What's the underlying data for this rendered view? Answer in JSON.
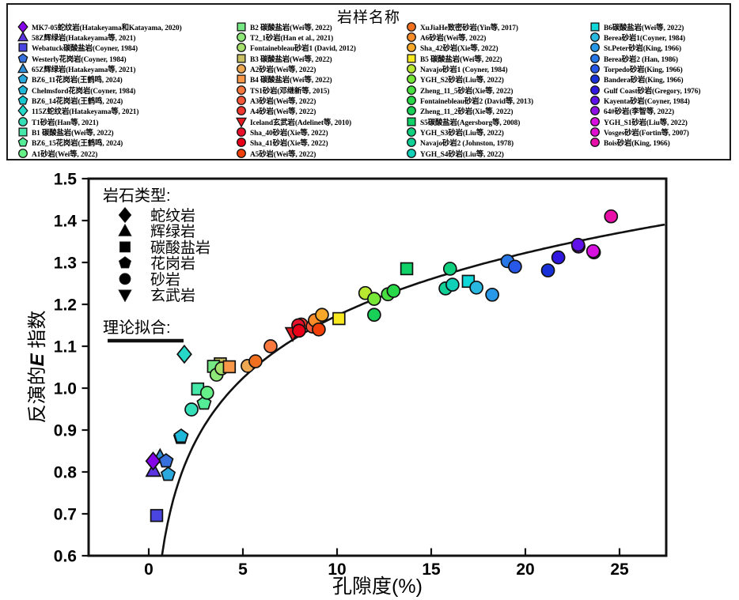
{
  "figure": {
    "legend_title": "岩样名称",
    "rock_type_legend": {
      "title": "岩石类型:",
      "items": [
        {
          "shape": "diamond",
          "label": "蛇纹岩"
        },
        {
          "shape": "triangle-up",
          "label": "辉绿岩"
        },
        {
          "shape": "square",
          "label": "碳酸盐岩"
        },
        {
          "shape": "pentagon",
          "label": "花岗岩"
        },
        {
          "shape": "circle",
          "label": "砂岩"
        },
        {
          "shape": "triangle-down",
          "label": "玄武岩"
        }
      ]
    },
    "fit_legend_label": "理论拟合:"
  },
  "legend_columns": [
    [
      {
        "label": "MK7-05蛇纹岩(Hatakeyama和Katayama, 2020)",
        "shape": "diamond",
        "color": "#8505E8"
      },
      {
        "label": "58Z辉绿岩(Hatakeyama等, 2021)",
        "shape": "triangle-up",
        "color": "#5A35E0"
      },
      {
        "label": "Webatuck碳酸盐岩(Coyner, 1984)",
        "shape": "square",
        "color": "#4A45E0"
      },
      {
        "label": "Westerly花岗岩(Coyner, 1984)",
        "shape": "pentagon",
        "color": "#3570DD"
      },
      {
        "label": "65Z辉绿岩(Hatakeyama等, 2021)",
        "shape": "triangle-up",
        "color": "#2E8FD8"
      },
      {
        "label": "BZ6_11花岗岩(王鹤鸣, 2024)",
        "shape": "pentagon",
        "color": "#2BA8DC"
      },
      {
        "label": "Chelmsford花岗岩(Coyner, 1984)",
        "shape": "pentagon",
        "color": "#1FB8D8"
      },
      {
        "label": "BZ6_14花岗岩(王鹤鸣, 2024)",
        "shape": "pentagon",
        "color": "#17C8D0"
      },
      {
        "label": "115Z蛇纹岩(Hatakeyama等, 2021)",
        "shape": "diamond",
        "color": "#25D8C8"
      },
      {
        "label": "T1砂岩(Han等, 2021)",
        "shape": "circle",
        "color": "#35E0B8"
      },
      {
        "label": "B1 碳酸盐岩(Wei等, 2022)",
        "shape": "square",
        "color": "#45E8A8"
      },
      {
        "label": "BZ6_15花岗岩(王鹤鸣, 2024)",
        "shape": "pentagon",
        "color": "#55EC98"
      },
      {
        "label": "A1砂岩(Wei等, 2022)",
        "shape": "circle",
        "color": "#65F088"
      }
    ],
    [
      {
        "label": "B2 碳酸盐岩(Wei等, 2022)",
        "shape": "square",
        "color": "#75E883"
      },
      {
        "label": "T2_1砂岩(Han et al., 2021)",
        "shape": "circle",
        "color": "#8DE878"
      },
      {
        "label": "Fontainebleau砂岩1 (David, 2012)",
        "shape": "circle",
        "color": "#A5E06D"
      },
      {
        "label": "B3 碳酸盐岩(Wei等, 2022)",
        "shape": "square",
        "color": "#C8C060"
      },
      {
        "label": "A2砂岩(Wei等, 2022)",
        "shape": "circle",
        "color": "#EFA852"
      },
      {
        "label": "B4 碳酸盐岩(Wei等, 2022)",
        "shape": "square",
        "color": "#F89848"
      },
      {
        "label": "TS1砂岩(邓继新等, 2015)",
        "shape": "circle",
        "color": "#F87840"
      },
      {
        "label": "A3砂岩(Wei等, 2022)",
        "shape": "circle",
        "color": "#F8583A"
      },
      {
        "label": "A4砂岩(Wei等, 2022)",
        "shape": "circle",
        "color": "#F03830"
      },
      {
        "label": "Iceland玄武岩(Adelinet等, 2010)",
        "shape": "triangle-down",
        "color": "#E81820"
      },
      {
        "label": "Sha_40砂岩(Xie等, 2022)",
        "shape": "circle",
        "color": "#E8102A"
      },
      {
        "label": "Sha_41砂岩(Xie等, 2022)",
        "shape": "circle",
        "color": "#E80018"
      },
      {
        "label": "A5砂岩(Wei等, 2022)",
        "shape": "circle",
        "color": "#F04008"
      }
    ],
    [
      {
        "label": "XuJiaHe致密砂岩(Yin等, 2017)",
        "shape": "circle",
        "color": "#F07020"
      },
      {
        "label": "A6砂岩(Wei等, 2022)",
        "shape": "circle",
        "color": "#F88C28"
      },
      {
        "label": "Sha_42砂岩(Xie等, 2022)",
        "shape": "circle",
        "color": "#F8A828"
      },
      {
        "label": "B5 碳酸盐岩(Wei等, 2022)",
        "shape": "square",
        "color": "#F8E820"
      },
      {
        "label": "Navajo砂岩1 (Coyner, 1984)",
        "shape": "circle",
        "color": "#B8E830"
      },
      {
        "label": "YGH_S2砂岩(Liu等, 2022)",
        "shape": "circle",
        "color": "#78E838"
      },
      {
        "label": "Zheng_11_5砂岩(Xie等, 2022)",
        "shape": "circle",
        "color": "#48E040"
      },
      {
        "label": "Fontainebleau砂岩2 (David等, 2013)",
        "shape": "circle",
        "color": "#28D848"
      },
      {
        "label": "Zheng_11_2砂岩(Xie等, 2022)",
        "shape": "circle",
        "color": "#18D058"
      },
      {
        "label": "S5碳酸盐岩(Agersborg等, 2008)",
        "shape": "square",
        "color": "#10D068"
      },
      {
        "label": "YGH_S3砂岩(Liu等, 2022)",
        "shape": "circle",
        "color": "#10D080"
      },
      {
        "label": "Navajo砂岩2 (Johnston, 1978)",
        "shape": "circle",
        "color": "#10D098"
      },
      {
        "label": "YGH_S4砂岩(Liu等, 2022)",
        "shape": "circle",
        "color": "#10D0B8"
      }
    ],
    [
      {
        "label": "B6碳酸盐岩(Wei等, 2022)",
        "shape": "square",
        "color": "#10D8D8"
      },
      {
        "label": "Berea砂岩1(Coyner, 1984)",
        "shape": "circle",
        "color": "#28B8E0"
      },
      {
        "label": "St.Peter砂岩(King, 1966)",
        "shape": "circle",
        "color": "#2898E8"
      },
      {
        "label": "Berea砂岩2 (Han, 1986)",
        "shape": "circle",
        "color": "#2878E8"
      },
      {
        "label": "Torpedo砂岩(King, 1966)",
        "shape": "circle",
        "color": "#2858E8"
      },
      {
        "label": "Bandera砂岩(King, 1966)",
        "shape": "circle",
        "color": "#1830D8"
      },
      {
        "label": "Gulf Coast砂岩(Gregory, 1976)",
        "shape": "circle",
        "color": "#3018E0"
      },
      {
        "label": "Kayenta砂岩(Coyner, 1984)",
        "shape": "circle",
        "color": "#6010E8"
      },
      {
        "label": "64#砂岩(李智等, 2022)",
        "shape": "circle",
        "color": "#9010E8"
      },
      {
        "label": "YGH_S1砂岩(Liu等, 2022)",
        "shape": "circle",
        "color": "#D810E0"
      },
      {
        "label": "Vosges砂岩(Fortin等, 2007)",
        "shape": "circle",
        "color": "#E010D0"
      },
      {
        "label": "Bois砂岩(King, 1966)",
        "shape": "circle",
        "color": "#E810A8"
      }
    ]
  ],
  "chart_data": {
    "type": "scatter",
    "xlabel": "孔隙度(%)",
    "ylabel": {
      "prefix": "反演的",
      "italic": "E",
      "suffix": " 指数"
    },
    "xlim": [
      -3.2,
      27.5
    ],
    "ylim": [
      0.6,
      1.5
    ],
    "x_ticks": [
      "0",
      "5",
      "10",
      "15",
      "20",
      "25"
    ],
    "y_ticks": [
      "0.6",
      "0.7",
      "0.8",
      "0.9",
      "1.0",
      "1.1",
      "1.2",
      "1.3",
      "1.4",
      "1.5"
    ],
    "grid": false,
    "fit_curve": {
      "label": "理论拟合:",
      "a": 0.677,
      "b": 0.2155,
      "x_start": 0.7,
      "x_end": 27.42
    },
    "points": [
      {
        "sample": "65Z辉绿岩",
        "type": "辉绿岩",
        "shape": "triangle-up",
        "color": "#2E8FD8",
        "x": 0.6,
        "y": 0.836
      },
      {
        "sample": "BZ6_14花岗岩",
        "type": "花岗岩",
        "shape": "pentagon",
        "color": "#17C8D0",
        "x": 1.7,
        "y": 0.882
      },
      {
        "sample": "B3 碳酸盐岩",
        "type": "碳酸盐岩",
        "shape": "square",
        "color": "#C8C060",
        "x": 3.8,
        "y": 1.058
      },
      {
        "sample": "64#砂岩",
        "type": "砂岩",
        "shape": "circle",
        "color": "#9010E8",
        "x": 22.82,
        "y": 1.338
      },
      {
        "sample": "Vosges砂岩",
        "type": "砂岩",
        "shape": "circle",
        "color": "#E010D0",
        "x": 23.64,
        "y": 1.324
      },
      {
        "sample": "A4砂岩",
        "type": "砂岩",
        "shape": "circle",
        "color": "#F03830",
        "x": 8.1,
        "y": 1.152
      },
      {
        "sample": "58Z辉绿岩",
        "type": "辉绿岩",
        "shape": "triangle-up",
        "color": "#5A35E0",
        "x": 0.25,
        "y": 0.803
      },
      {
        "sample": "MK7-05蛇纹岩",
        "type": "蛇纹岩",
        "shape": "diamond",
        "color": "#8505E8",
        "x": 0.23,
        "y": 0.826
      },
      {
        "sample": "Webatuck碳酸盐岩",
        "type": "碳酸盐岩",
        "shape": "square",
        "color": "#4A45E0",
        "x": 0.42,
        "y": 0.696
      },
      {
        "sample": "Westerly花岗岩",
        "type": "花岗岩",
        "shape": "pentagon",
        "color": "#3570DD",
        "x": 0.92,
        "y": 0.826
      },
      {
        "sample": "BZ6_11花岗岩",
        "type": "花岗岩",
        "shape": "pentagon",
        "color": "#2BA8DC",
        "x": 1.03,
        "y": 0.794
      },
      {
        "sample": "Chelmsford花岗岩",
        "type": "花岗岩",
        "shape": "pentagon",
        "color": "#1FB8D8",
        "x": 1.72,
        "y": 0.885
      },
      {
        "sample": "115Z蛇纹岩",
        "type": "蛇纹岩",
        "shape": "diamond",
        "color": "#25D8C8",
        "x": 1.89,
        "y": 1.081
      },
      {
        "sample": "T1砂岩",
        "type": "砂岩",
        "shape": "circle",
        "color": "#35E0B8",
        "x": 2.27,
        "y": 0.949
      },
      {
        "sample": "B1 碳酸盐岩",
        "type": "碳酸盐岩",
        "shape": "square",
        "color": "#45E8A8",
        "x": 2.6,
        "y": 0.998
      },
      {
        "sample": "BZ6_15花岗岩",
        "type": "花岗岩",
        "shape": "pentagon",
        "color": "#55EC98",
        "x": 2.94,
        "y": 0.964
      },
      {
        "sample": "A1砂岩",
        "type": "砂岩",
        "shape": "circle",
        "color": "#65F088",
        "x": 3.1,
        "y": 0.989
      },
      {
        "sample": "B2 碳酸盐岩",
        "type": "碳酸盐岩",
        "shape": "square",
        "color": "#75E883",
        "x": 3.44,
        "y": 1.052
      },
      {
        "sample": "T2_1砂岩",
        "type": "砂岩",
        "shape": "circle",
        "color": "#8DE878",
        "x": 3.6,
        "y": 1.032
      },
      {
        "sample": "Fontainebleau砂岩1",
        "type": "砂岩",
        "shape": "circle",
        "color": "#A5E06D",
        "x": 3.87,
        "y": 1.047
      },
      {
        "sample": "B4 碳酸盐岩",
        "type": "碳酸盐岩",
        "shape": "square",
        "color": "#F89848",
        "x": 4.28,
        "y": 1.051
      },
      {
        "sample": "A2砂岩",
        "type": "砂岩",
        "shape": "circle",
        "color": "#EFA852",
        "x": 5.25,
        "y": 1.053
      },
      {
        "sample": "XuJiaHe致密砂岩",
        "type": "砂岩",
        "shape": "circle",
        "color": "#F07020",
        "x": 5.67,
        "y": 1.064
      },
      {
        "sample": "TS1砂岩",
        "type": "砂岩",
        "shape": "circle",
        "color": "#F87840",
        "x": 6.47,
        "y": 1.1
      },
      {
        "sample": "Iceland玄武岩",
        "type": "玄武岩",
        "shape": "triangle-down",
        "color": "#E81820",
        "x": 7.65,
        "y": 1.131
      },
      {
        "sample": "Sha_40砂岩",
        "type": "砂岩",
        "shape": "circle",
        "color": "#E8102A",
        "x": 7.94,
        "y": 1.15
      },
      {
        "sample": "Sha_41砂岩",
        "type": "砂岩",
        "shape": "circle",
        "color": "#E80018",
        "x": 7.98,
        "y": 1.137
      },
      {
        "sample": "A3砂岩",
        "type": "砂岩",
        "shape": "circle",
        "color": "#F8583A",
        "x": 8.7,
        "y": 1.147
      },
      {
        "sample": "A6砂岩",
        "type": "砂岩",
        "shape": "circle",
        "color": "#F88C28",
        "x": 8.82,
        "y": 1.162
      },
      {
        "sample": "A5砂岩",
        "type": "砂岩",
        "shape": "circle",
        "color": "#F04008",
        "x": 9.03,
        "y": 1.14
      },
      {
        "sample": "Sha_42砂岩",
        "type": "砂岩",
        "shape": "circle",
        "color": "#F8A828",
        "x": 9.2,
        "y": 1.175
      },
      {
        "sample": "B5 碳酸盐岩",
        "type": "碳酸盐岩",
        "shape": "square",
        "color": "#F8E820",
        "x": 10.1,
        "y": 1.166
      },
      {
        "sample": "Navajo砂岩1",
        "type": "砂岩",
        "shape": "circle",
        "color": "#B8E830",
        "x": 11.5,
        "y": 1.227
      },
      {
        "sample": "YGH_S2砂岩",
        "type": "砂岩",
        "shape": "circle",
        "color": "#78E838",
        "x": 11.97,
        "y": 1.213
      },
      {
        "sample": "Zheng_11_2砂岩",
        "type": "砂岩",
        "shape": "circle",
        "color": "#18D058",
        "x": 11.97,
        "y": 1.175
      },
      {
        "sample": "Zheng_11_5砂岩",
        "type": "砂岩",
        "shape": "circle",
        "color": "#48E040",
        "x": 12.7,
        "y": 1.224
      },
      {
        "sample": "Fontainebleau砂岩2",
        "type": "砂岩",
        "shape": "circle",
        "color": "#28D848",
        "x": 13.0,
        "y": 1.232
      },
      {
        "sample": "S5碳酸盐岩",
        "type": "碳酸盐岩",
        "shape": "square",
        "color": "#10D068",
        "x": 13.7,
        "y": 1.285
      },
      {
        "sample": "Navajo砂岩2",
        "type": "砂岩",
        "shape": "circle",
        "color": "#10D098",
        "x": 15.76,
        "y": 1.238
      },
      {
        "sample": "YGH_S4砂岩",
        "type": "砂岩",
        "shape": "circle",
        "color": "#10D0B8",
        "x": 16.13,
        "y": 1.247
      },
      {
        "sample": "YGH_S3砂岩",
        "type": "砂岩",
        "shape": "circle",
        "color": "#10D080",
        "x": 16.0,
        "y": 1.285
      },
      {
        "sample": "B6碳酸盐岩",
        "type": "碳酸盐岩",
        "shape": "square",
        "color": "#10D8D8",
        "x": 16.97,
        "y": 1.255
      },
      {
        "sample": "Berea砂岩1",
        "type": "砂岩",
        "shape": "circle",
        "color": "#28B8E0",
        "x": 17.4,
        "y": 1.24
      },
      {
        "sample": "St.Peter砂岩",
        "type": "砂岩",
        "shape": "circle",
        "color": "#2898E8",
        "x": 18.24,
        "y": 1.223
      },
      {
        "sample": "Berea砂岩2",
        "type": "砂岩",
        "shape": "circle",
        "color": "#2878E8",
        "x": 19.05,
        "y": 1.303
      },
      {
        "sample": "Torpedo砂岩",
        "type": "砂岩",
        "shape": "circle",
        "color": "#2858E8",
        "x": 19.45,
        "y": 1.29
      },
      {
        "sample": "Bandera砂岩",
        "type": "砂岩",
        "shape": "circle",
        "color": "#1830D8",
        "x": 21.2,
        "y": 1.281
      },
      {
        "sample": "Gulf Coast砂岩",
        "type": "砂岩",
        "shape": "circle",
        "color": "#3018E0",
        "x": 21.75,
        "y": 1.312
      },
      {
        "sample": "Kayenta砂岩",
        "type": "砂岩",
        "shape": "circle",
        "color": "#6010E8",
        "x": 22.8,
        "y": 1.342
      },
      {
        "sample": "YGH_S1砂岩",
        "type": "砂岩",
        "shape": "circle",
        "color": "#D810E0",
        "x": 23.6,
        "y": 1.327
      },
      {
        "sample": "Bois砂岩",
        "type": "砂岩",
        "shape": "circle",
        "color": "#E810A8",
        "x": 24.55,
        "y": 1.41
      }
    ]
  }
}
